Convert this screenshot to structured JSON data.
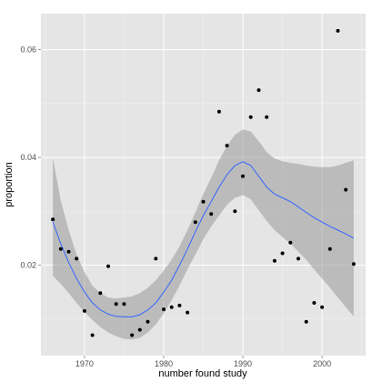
{
  "chart_data": {
    "type": "scatter",
    "xlabel": "number found study",
    "ylabel": "proportion",
    "xlim": [
      1964.5,
      2005.5
    ],
    "ylim": [
      0.0032,
      0.0667
    ],
    "x_ticks": [
      1970,
      1980,
      1990,
      2000
    ],
    "x_tick_labels": [
      "1970",
      "1980",
      "1990",
      "2000"
    ],
    "y_ticks": [
      0.02,
      0.04,
      0.06
    ],
    "y_tick_labels": [
      "0.02",
      "0.04",
      "0.06"
    ],
    "grid": true,
    "legend": "none",
    "colors": {
      "panel": "#e5e5e5",
      "grid_major": "#ffffff",
      "grid_minor": "#f2f2f2",
      "points": "#000000",
      "smooth_line": "#3366ff",
      "confidence_band": "#999999"
    },
    "points": {
      "x": [
        1966,
        1967,
        1968,
        1969,
        1970,
        1971,
        1972,
        1973,
        1974,
        1975,
        1976,
        1977,
        1978,
        1979,
        1980,
        1981,
        1982,
        1983,
        1984,
        1985,
        1986,
        1987,
        1988,
        1989,
        1990,
        1991,
        1992,
        1993,
        1994,
        1995,
        1996,
        1997,
        1998,
        1999,
        2000,
        2001,
        2002,
        2003,
        2004
      ],
      "y": [
        0.0285,
        0.023,
        0.0225,
        0.0212,
        0.0115,
        0.007,
        0.0148,
        0.0198,
        0.0128,
        0.0128,
        0.007,
        0.008,
        0.0095,
        0.0212,
        0.0118,
        0.0122,
        0.0125,
        0.0112,
        0.028,
        0.0318,
        0.0295,
        0.0485,
        0.0422,
        0.03,
        0.0365,
        0.0475,
        0.0525,
        0.0475,
        0.0208,
        0.0222,
        0.0242,
        0.0212,
        0.0095,
        0.013,
        0.0122,
        0.023,
        0.0635,
        0.034,
        0.0202
      ]
    },
    "smooth": {
      "x": [
        1966,
        1967,
        1968,
        1969,
        1970,
        1971,
        1972,
        1973,
        1974,
        1975,
        1976,
        1977,
        1978,
        1979,
        1980,
        1981,
        1982,
        1983,
        1984,
        1985,
        1986,
        1987,
        1988,
        1989,
        1990,
        1991,
        1992,
        1993,
        1994,
        1995,
        1996,
        1997,
        1998,
        1999,
        2000,
        2001,
        2002,
        2003,
        2004
      ],
      "y": [
        0.028,
        0.024,
        0.0205,
        0.0175,
        0.015,
        0.013,
        0.0117,
        0.0109,
        0.0105,
        0.0104,
        0.0104,
        0.0108,
        0.0117,
        0.013,
        0.015,
        0.0172,
        0.02,
        0.023,
        0.0262,
        0.0292,
        0.0318,
        0.0345,
        0.0368,
        0.0385,
        0.0392,
        0.0385,
        0.0365,
        0.0345,
        0.0332,
        0.0325,
        0.0318,
        0.0308,
        0.0298,
        0.0288,
        0.028,
        0.0272,
        0.0265,
        0.0258,
        0.025
      ],
      "ymin": [
        0.018,
        0.0165,
        0.0148,
        0.013,
        0.0113,
        0.0098,
        0.0085,
        0.0075,
        0.0068,
        0.0063,
        0.0062,
        0.0065,
        0.0075,
        0.009,
        0.011,
        0.0135,
        0.0162,
        0.0192,
        0.022,
        0.0248,
        0.0272,
        0.0292,
        0.0312,
        0.0325,
        0.033,
        0.0322,
        0.0302,
        0.0282,
        0.0265,
        0.0252,
        0.024,
        0.0225,
        0.021,
        0.0192,
        0.0175,
        0.0158,
        0.014,
        0.0122,
        0.0105
      ],
      "ymax": [
        0.04,
        0.032,
        0.0265,
        0.022,
        0.0187,
        0.0162,
        0.0148,
        0.014,
        0.0138,
        0.014,
        0.0142,
        0.0148,
        0.0158,
        0.0172,
        0.019,
        0.021,
        0.0235,
        0.0265,
        0.0298,
        0.0332,
        0.0362,
        0.0395,
        0.0422,
        0.0442,
        0.0452,
        0.0448,
        0.043,
        0.041,
        0.0398,
        0.0393,
        0.039,
        0.0388,
        0.0385,
        0.0383,
        0.0382,
        0.0382,
        0.0385,
        0.039,
        0.0395
      ]
    }
  }
}
